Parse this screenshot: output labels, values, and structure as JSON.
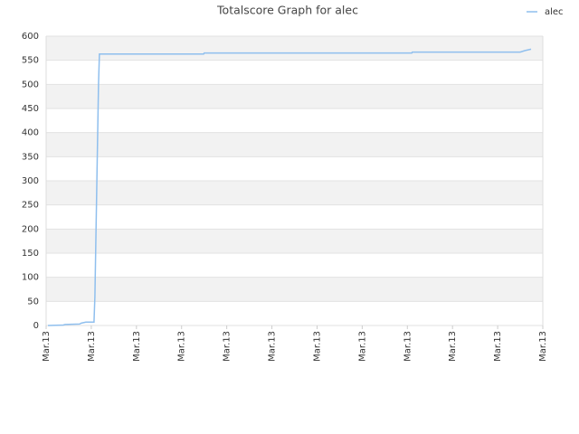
{
  "chart_data": {
    "type": "line",
    "title": "Totalscore Graph for alec",
    "xlim": [
      0,
      11
    ],
    "xticks": [
      {
        "value": 0,
        "label": "Mar.13"
      },
      {
        "value": 1,
        "label": "Mar.13"
      },
      {
        "value": 2,
        "label": "Mar.13"
      },
      {
        "value": 3,
        "label": "Mar.13"
      },
      {
        "value": 4,
        "label": "Mar.13"
      },
      {
        "value": 5,
        "label": "Mar.13"
      },
      {
        "value": 6,
        "label": "Mar.13"
      },
      {
        "value": 7,
        "label": "Mar.13"
      },
      {
        "value": 8,
        "label": "Mar.13"
      },
      {
        "value": 9,
        "label": "Mar.13"
      },
      {
        "value": 10,
        "label": "Mar.13"
      },
      {
        "value": 11,
        "label": "Mar.13"
      }
    ],
    "ylim": [
      0,
      600
    ],
    "yticks": [
      0,
      50,
      100,
      150,
      200,
      250,
      300,
      350,
      400,
      450,
      500,
      550,
      600
    ],
    "grid": true,
    "legend": "top-right",
    "series": [
      {
        "name": "alec",
        "color": "#8fbfee",
        "x": [
          0.04,
          0.38,
          0.42,
          0.74,
          0.78,
          0.88,
          1.06,
          1.08,
          1.1,
          1.12,
          1.14,
          1.16,
          1.18,
          3.49,
          3.5,
          8.1,
          8.11,
          10.5,
          10.6,
          10.74
        ],
        "values": [
          0,
          1,
          2,
          3,
          5,
          7,
          7,
          60,
          170,
          280,
          390,
          500,
          563,
          563,
          565,
          565,
          567,
          567,
          570,
          573
        ]
      }
    ]
  }
}
